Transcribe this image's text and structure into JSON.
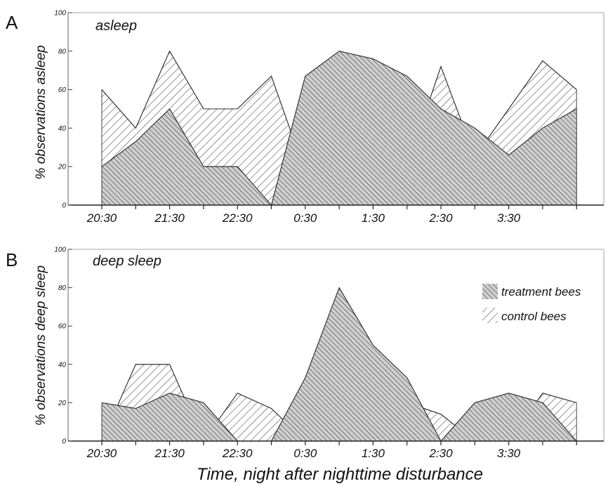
{
  "x_tick_labels": [
    "20:30",
    "21:30",
    "22:30",
    "0:30",
    "1:30",
    "2:30",
    "3:30"
  ],
  "x_axis_label": "Time, night after nighttime disturbance",
  "colors": {
    "line": "#333333",
    "fill": "#cfcfcf",
    "hatch": "#444444"
  },
  "legend": {
    "position": "top-right",
    "entries": [
      {
        "label": "treatment bees",
        "hatch": "dense-forward"
      },
      {
        "label": "control bees",
        "hatch": "sparse-backward"
      }
    ]
  },
  "chart_data": [
    {
      "type": "area",
      "panel_label": "A",
      "title": "asleep",
      "ylabel": "% observations asleep",
      "ylim": [
        0,
        100
      ],
      "y_ticks": [
        0,
        20,
        40,
        60,
        80,
        100
      ],
      "x": [
        0,
        0.5,
        1,
        1.5,
        2,
        2.5,
        3,
        3.5,
        4,
        4.5,
        5,
        5.5,
        6,
        6.5,
        7
      ],
      "series": [
        {
          "name": "treatment bees",
          "values": [
            20,
            33,
            50,
            20,
            20,
            0,
            67,
            80,
            76,
            67,
            50,
            40,
            26,
            40,
            50
          ]
        },
        {
          "name": "control bees",
          "values": [
            60,
            40,
            80,
            50,
            50,
            67,
            17,
            29,
            60,
            20,
            72,
            25,
            50,
            75,
            60
          ]
        }
      ]
    },
    {
      "type": "area",
      "panel_label": "B",
      "title": "deep sleep",
      "ylabel": "% observations deep sleep",
      "ylim": [
        0,
        100
      ],
      "y_ticks": [
        0,
        20,
        40,
        60,
        80,
        100
      ],
      "x": [
        0,
        0.5,
        1,
        1.5,
        2,
        2.5,
        3,
        3.5,
        4,
        4.5,
        5,
        5.5,
        6,
        6.5,
        7
      ],
      "series": [
        {
          "name": "treatment bees",
          "values": [
            20,
            17,
            25,
            20,
            0,
            0,
            33,
            80,
            50,
            33,
            0,
            20,
            25,
            20,
            0
          ]
        },
        {
          "name": "control bees",
          "values": [
            0,
            40,
            40,
            0,
            25,
            17,
            0,
            15,
            40,
            20,
            14,
            0,
            0,
            25,
            20
          ]
        }
      ]
    }
  ]
}
